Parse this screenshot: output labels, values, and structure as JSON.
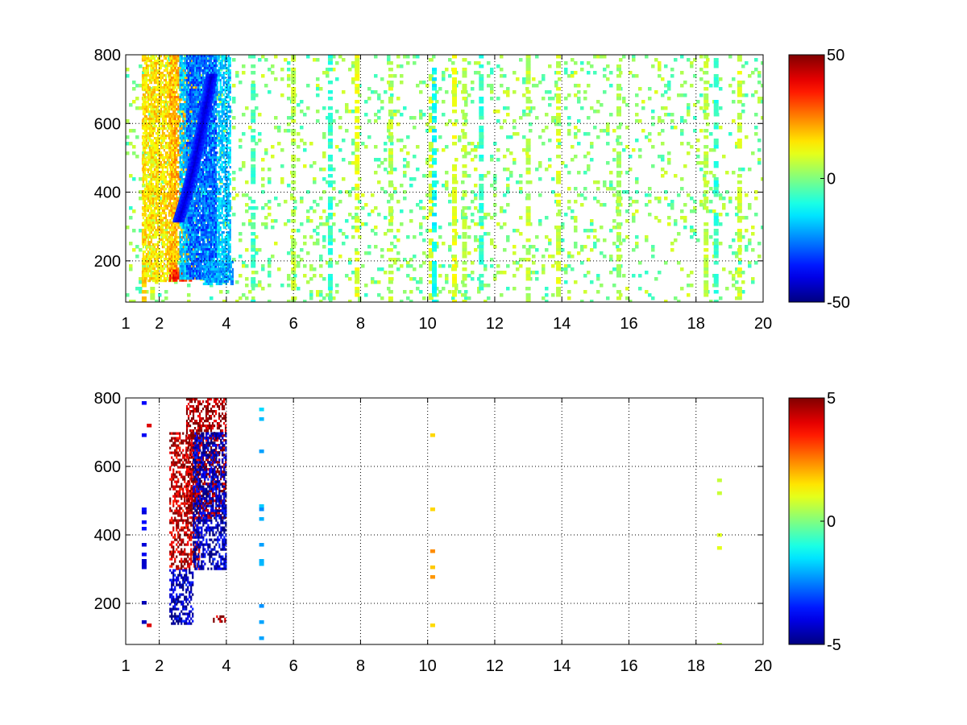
{
  "chart_data": [
    {
      "type": "heatmap",
      "title": "",
      "xlabel": "",
      "ylabel": "",
      "xlim": [
        1,
        20
      ],
      "ylim": [
        80,
        800
      ],
      "x_ticks": [
        1,
        2,
        4,
        6,
        8,
        10,
        12,
        14,
        16,
        18,
        20
      ],
      "y_ticks": [
        200,
        400,
        600,
        800
      ],
      "grid": "on",
      "grid_x": [
        2,
        4,
        6,
        8,
        10,
        12,
        14,
        16,
        18,
        20
      ],
      "grid_y": [
        200,
        400,
        600,
        800
      ],
      "colormap": "jet",
      "clim": [
        -50,
        50
      ],
      "colorbar_ticks": [
        50,
        0,
        -50
      ],
      "colorbar_position": "right",
      "regions": [
        {
          "x": [
            1.5,
            2.5
          ],
          "y": [
            140,
            800
          ],
          "value": 15
        },
        {
          "x": [
            2.3,
            3.1
          ],
          "y": [
            150,
            800
          ],
          "value": 20
        },
        {
          "x": [
            2.3,
            3.0
          ],
          "y": [
            140,
            175
          ],
          "value": 35
        },
        {
          "x": [
            2.6,
            4.1
          ],
          "y": [
            150,
            800
          ],
          "value": -18
        },
        {
          "x": [
            2.8,
            3.7
          ],
          "y": [
            150,
            800
          ],
          "value": -28
        },
        {
          "x": [
            3.3,
            4.2
          ],
          "y": [
            130,
            200
          ],
          "value": -22
        }
      ],
      "ridge": {
        "x": [
          2.55,
          2.8,
          3.05,
          3.3,
          3.55
        ],
        "y": [
          320,
          400,
          500,
          620,
          750
        ],
        "value": -42
      },
      "stripes": [
        {
          "x": 1.55,
          "value": 18
        },
        {
          "x": 1.8,
          "value": 8
        },
        {
          "x": 4.8,
          "value": -6
        },
        {
          "x": 6.0,
          "value": 6
        },
        {
          "x": 7.1,
          "value": -8
        },
        {
          "x": 7.9,
          "value": 10
        },
        {
          "x": 8.9,
          "value": 6
        },
        {
          "x": 10.1,
          "value": 8
        },
        {
          "x": 10.2,
          "value": -12
        },
        {
          "x": 10.8,
          "value": 10
        },
        {
          "x": 11.1,
          "value": 6
        },
        {
          "x": 11.6,
          "value": -8
        },
        {
          "x": 13.0,
          "value": 6
        },
        {
          "x": 13.9,
          "value": 8
        },
        {
          "x": 15.7,
          "value": 4
        },
        {
          "x": 18.3,
          "value": 6
        },
        {
          "x": 18.6,
          "value": -8
        },
        {
          "x": 19.3,
          "value": 8
        }
      ]
    },
    {
      "type": "heatmap",
      "title": "",
      "xlabel": "",
      "ylabel": "",
      "xlim": [
        1,
        20
      ],
      "ylim": [
        80,
        800
      ],
      "x_ticks": [
        1,
        2,
        4,
        6,
        8,
        10,
        12,
        14,
        16,
        18,
        20
      ],
      "y_ticks": [
        200,
        400,
        600,
        800
      ],
      "grid": "on",
      "grid_x": [
        2,
        4,
        6,
        8,
        10,
        12,
        14,
        16,
        18,
        20
      ],
      "grid_y": [
        200,
        400,
        600,
        800
      ],
      "colormap": "jet",
      "clim": [
        -5,
        5
      ],
      "colorbar_ticks": [
        5,
        0,
        -5
      ],
      "colorbar_position": "right",
      "regions": [
        {
          "x": [
            2.3,
            3.2
          ],
          "y": [
            300,
            700
          ],
          "value": 4.5
        },
        {
          "x": [
            2.3,
            3.0
          ],
          "y": [
            140,
            300
          ],
          "value": -4.5
        },
        {
          "x": [
            2.8,
            4.0
          ],
          "y": [
            450,
            800
          ],
          "value": 4.8
        },
        {
          "x": [
            3.0,
            4.0
          ],
          "y": [
            300,
            700
          ],
          "value": -4.5
        },
        {
          "x": [
            3.6,
            4.0
          ],
          "y": [
            150,
            165
          ],
          "value": 5
        }
      ],
      "stripes": [
        {
          "x": 1.55,
          "value": -4
        },
        {
          "x": 1.7,
          "value": 4
        },
        {
          "x": 5.05,
          "value": -2
        },
        {
          "x": 10.15,
          "value": 2
        },
        {
          "x": 18.7,
          "value": 1
        }
      ]
    }
  ]
}
